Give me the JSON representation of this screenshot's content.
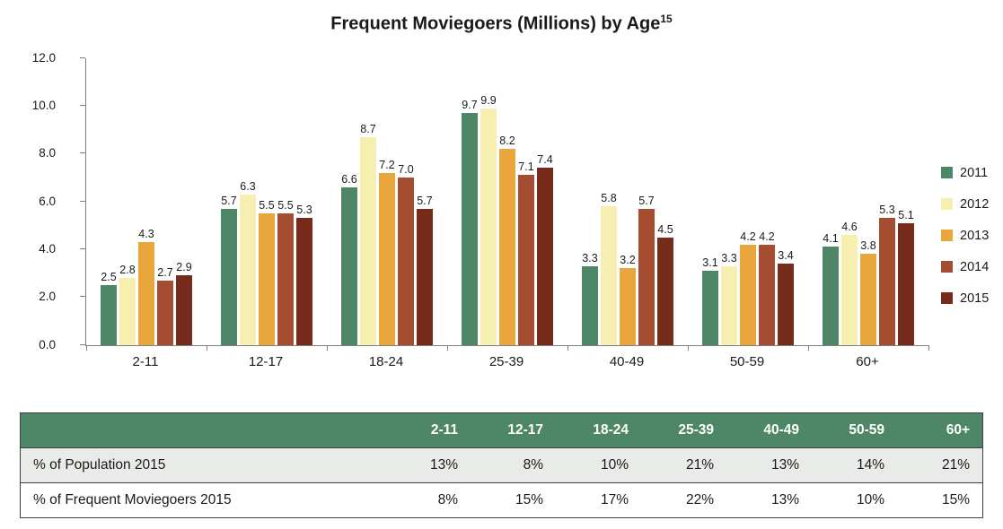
{
  "chart_data": {
    "type": "bar",
    "title": "Frequent Moviegoers (Millions) by Age",
    "title_superscript": "15",
    "categories": [
      "2-11",
      "12-17",
      "18-24",
      "25-39",
      "40-49",
      "50-59",
      "60+"
    ],
    "series": [
      {
        "name": "2011",
        "color": "#4e8768",
        "values": [
          2.5,
          5.7,
          6.6,
          9.7,
          3.3,
          3.1,
          4.1
        ]
      },
      {
        "name": "2012",
        "color": "#f6efaf",
        "values": [
          2.8,
          6.3,
          8.7,
          9.9,
          5.8,
          3.3,
          4.6
        ]
      },
      {
        "name": "2013",
        "color": "#e9a63c",
        "values": [
          4.3,
          5.5,
          7.2,
          8.2,
          3.2,
          4.2,
          3.8
        ]
      },
      {
        "name": "2014",
        "color": "#a44d31",
        "values": [
          2.7,
          5.5,
          7.0,
          7.1,
          5.7,
          4.2,
          5.3
        ]
      },
      {
        "name": "2015",
        "color": "#772b1a",
        "values": [
          2.9,
          5.3,
          5.7,
          7.4,
          4.5,
          3.4,
          5.1
        ]
      }
    ],
    "ylim": [
      0,
      12
    ],
    "ytick_step": 2,
    "yticks": [
      "0.0",
      "2.0",
      "4.0",
      "6.0",
      "8.0",
      "10.0",
      "12.0"
    ],
    "grid": "off",
    "legend_position": "right",
    "value_labels": "on",
    "value_label_format": "1-decimal"
  },
  "table": {
    "header_blank": "",
    "columns": [
      "2-11",
      "12-17",
      "18-24",
      "25-39",
      "40-49",
      "50-59",
      "60+"
    ],
    "rows": [
      {
        "label": "% of Population 2015",
        "values": [
          "13%",
          "8%",
          "10%",
          "21%",
          "13%",
          "14%",
          "21%"
        ]
      },
      {
        "label": "% of Frequent Moviegoers 2015",
        "values": [
          "8%",
          "15%",
          "17%",
          "22%",
          "13%",
          "10%",
          "15%"
        ]
      }
    ],
    "header_bg": "#4e8768",
    "alt_row_bg": "#e8ebe7"
  }
}
